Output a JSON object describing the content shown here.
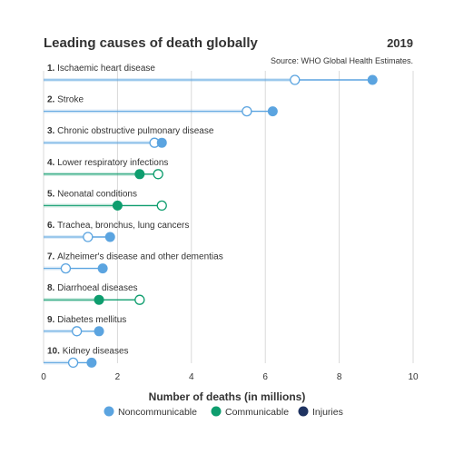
{
  "chart_data": {
    "type": "dumbbell",
    "title": "Leading causes of death globally",
    "year_label": "2019",
    "source": "Source: WHO Global Health Estimates.",
    "xlabel": "Number of deaths (in millions)",
    "ylabel": "",
    "xlim": [
      0,
      10
    ],
    "xticks": [
      0,
      2,
      4,
      6,
      8,
      10
    ],
    "grid": true,
    "legend_position": "bottom",
    "colors": {
      "Noncommunicable": "#5ba4e0",
      "Communicable": "#0e9d6e",
      "Injuries": "#1f3361"
    },
    "legend": [
      "Noncommunicable",
      "Communicable",
      "Injuries"
    ],
    "rows": [
      {
        "label": "1. Ischaemic heart disease",
        "category": "Noncommunicable",
        "start": 6.8,
        "end": 8.9
      },
      {
        "label": "2. Stroke",
        "category": "Noncommunicable",
        "start": 5.5,
        "end": 6.2
      },
      {
        "label": "3. Chronic obstructive pulmonary disease",
        "category": "Noncommunicable",
        "start": 3.0,
        "end": 3.2
      },
      {
        "label": "4. Lower respiratory infections",
        "category": "Communicable",
        "start": 3.1,
        "end": 2.6
      },
      {
        "label": "5. Neonatal conditions",
        "category": "Communicable",
        "start": 3.2,
        "end": 2.0
      },
      {
        "label": "6. Trachea, bronchus, lung cancers",
        "category": "Noncommunicable",
        "start": 1.2,
        "end": 1.8
      },
      {
        "label": "7. Alzheimer's disease and other dementias",
        "category": "Noncommunicable",
        "start": 0.6,
        "end": 1.6
      },
      {
        "label": "8. Diarrhoeal diseases",
        "category": "Communicable",
        "start": 2.6,
        "end": 1.5
      },
      {
        "label": "9. Diabetes mellitus",
        "category": "Noncommunicable",
        "start": 0.9,
        "end": 1.5
      },
      {
        "label": "10. Kidney diseases",
        "category": "Noncommunicable",
        "start": 0.8,
        "end": 1.3
      }
    ]
  }
}
